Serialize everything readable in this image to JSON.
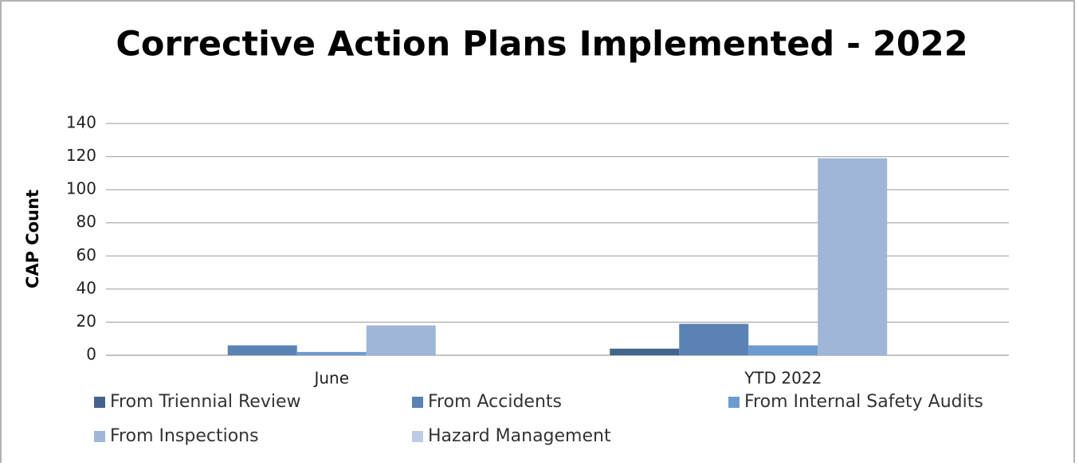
{
  "chart_data": {
    "type": "bar",
    "title": "Corrective Action Plans Implemented - 2022",
    "y_label": "CAP Count",
    "categories": [
      "June",
      "YTD 2022"
    ],
    "series": [
      {
        "name": "From Triennial Review",
        "color": "#44648e",
        "values": [
          0,
          4
        ]
      },
      {
        "name": "From Accidents",
        "color": "#5a82b4",
        "values": [
          6,
          19
        ]
      },
      {
        "name": "From Internal Safety Audits",
        "color": "#6c9bd0",
        "values": [
          2,
          6
        ]
      },
      {
        "name": "From Inspections",
        "color": "#9fb6d8",
        "values": [
          18,
          119
        ]
      },
      {
        "name": "Hazard Management",
        "color": "#bccbe6",
        "values": [
          0,
          0
        ]
      }
    ],
    "ylim": [
      0,
      140
    ],
    "yticks": [
      0,
      20,
      40,
      60,
      80,
      100,
      120,
      140
    ],
    "grid": true,
    "legend": "bottom"
  }
}
